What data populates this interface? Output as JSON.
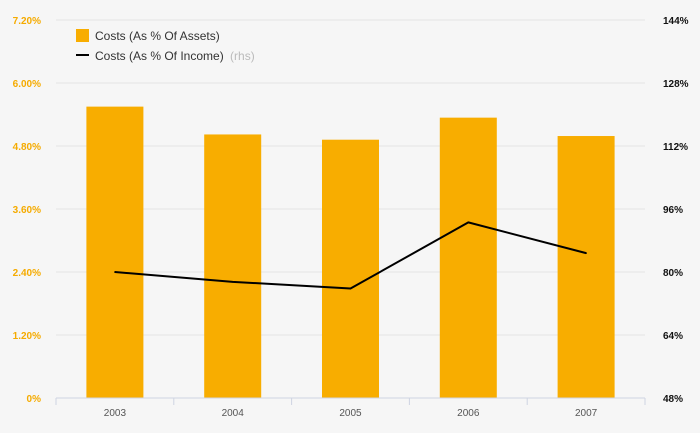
{
  "chart_data": {
    "type": "bar",
    "categories": [
      "2003",
      "2004",
      "2005",
      "2006",
      "2007"
    ],
    "series": [
      {
        "name": "Costs (As % Of Assets)",
        "type": "bar",
        "axis": "left",
        "color": "#f8ad00",
        "values": [
          5.55,
          5.02,
          4.92,
          5.34,
          4.99
        ]
      },
      {
        "name": "Costs (As % Of Income)",
        "type": "line",
        "axis": "right",
        "color": "#000000",
        "values": [
          80.0,
          77.5,
          75.8,
          92.6,
          84.8
        ]
      }
    ],
    "legend_suffix": "(rhs)",
    "y_left": {
      "ylim": [
        0,
        7.2
      ],
      "ticks": [
        "0%",
        "1.20%",
        "2.40%",
        "3.60%",
        "4.80%",
        "6.00%",
        "7.20%"
      ]
    },
    "y_right": {
      "ylim": [
        48,
        144
      ],
      "ticks": [
        "48%",
        "64%",
        "80%",
        "96%",
        "112%",
        "128%",
        "144%"
      ]
    },
    "grid": true,
    "legend_position": "top-left"
  }
}
